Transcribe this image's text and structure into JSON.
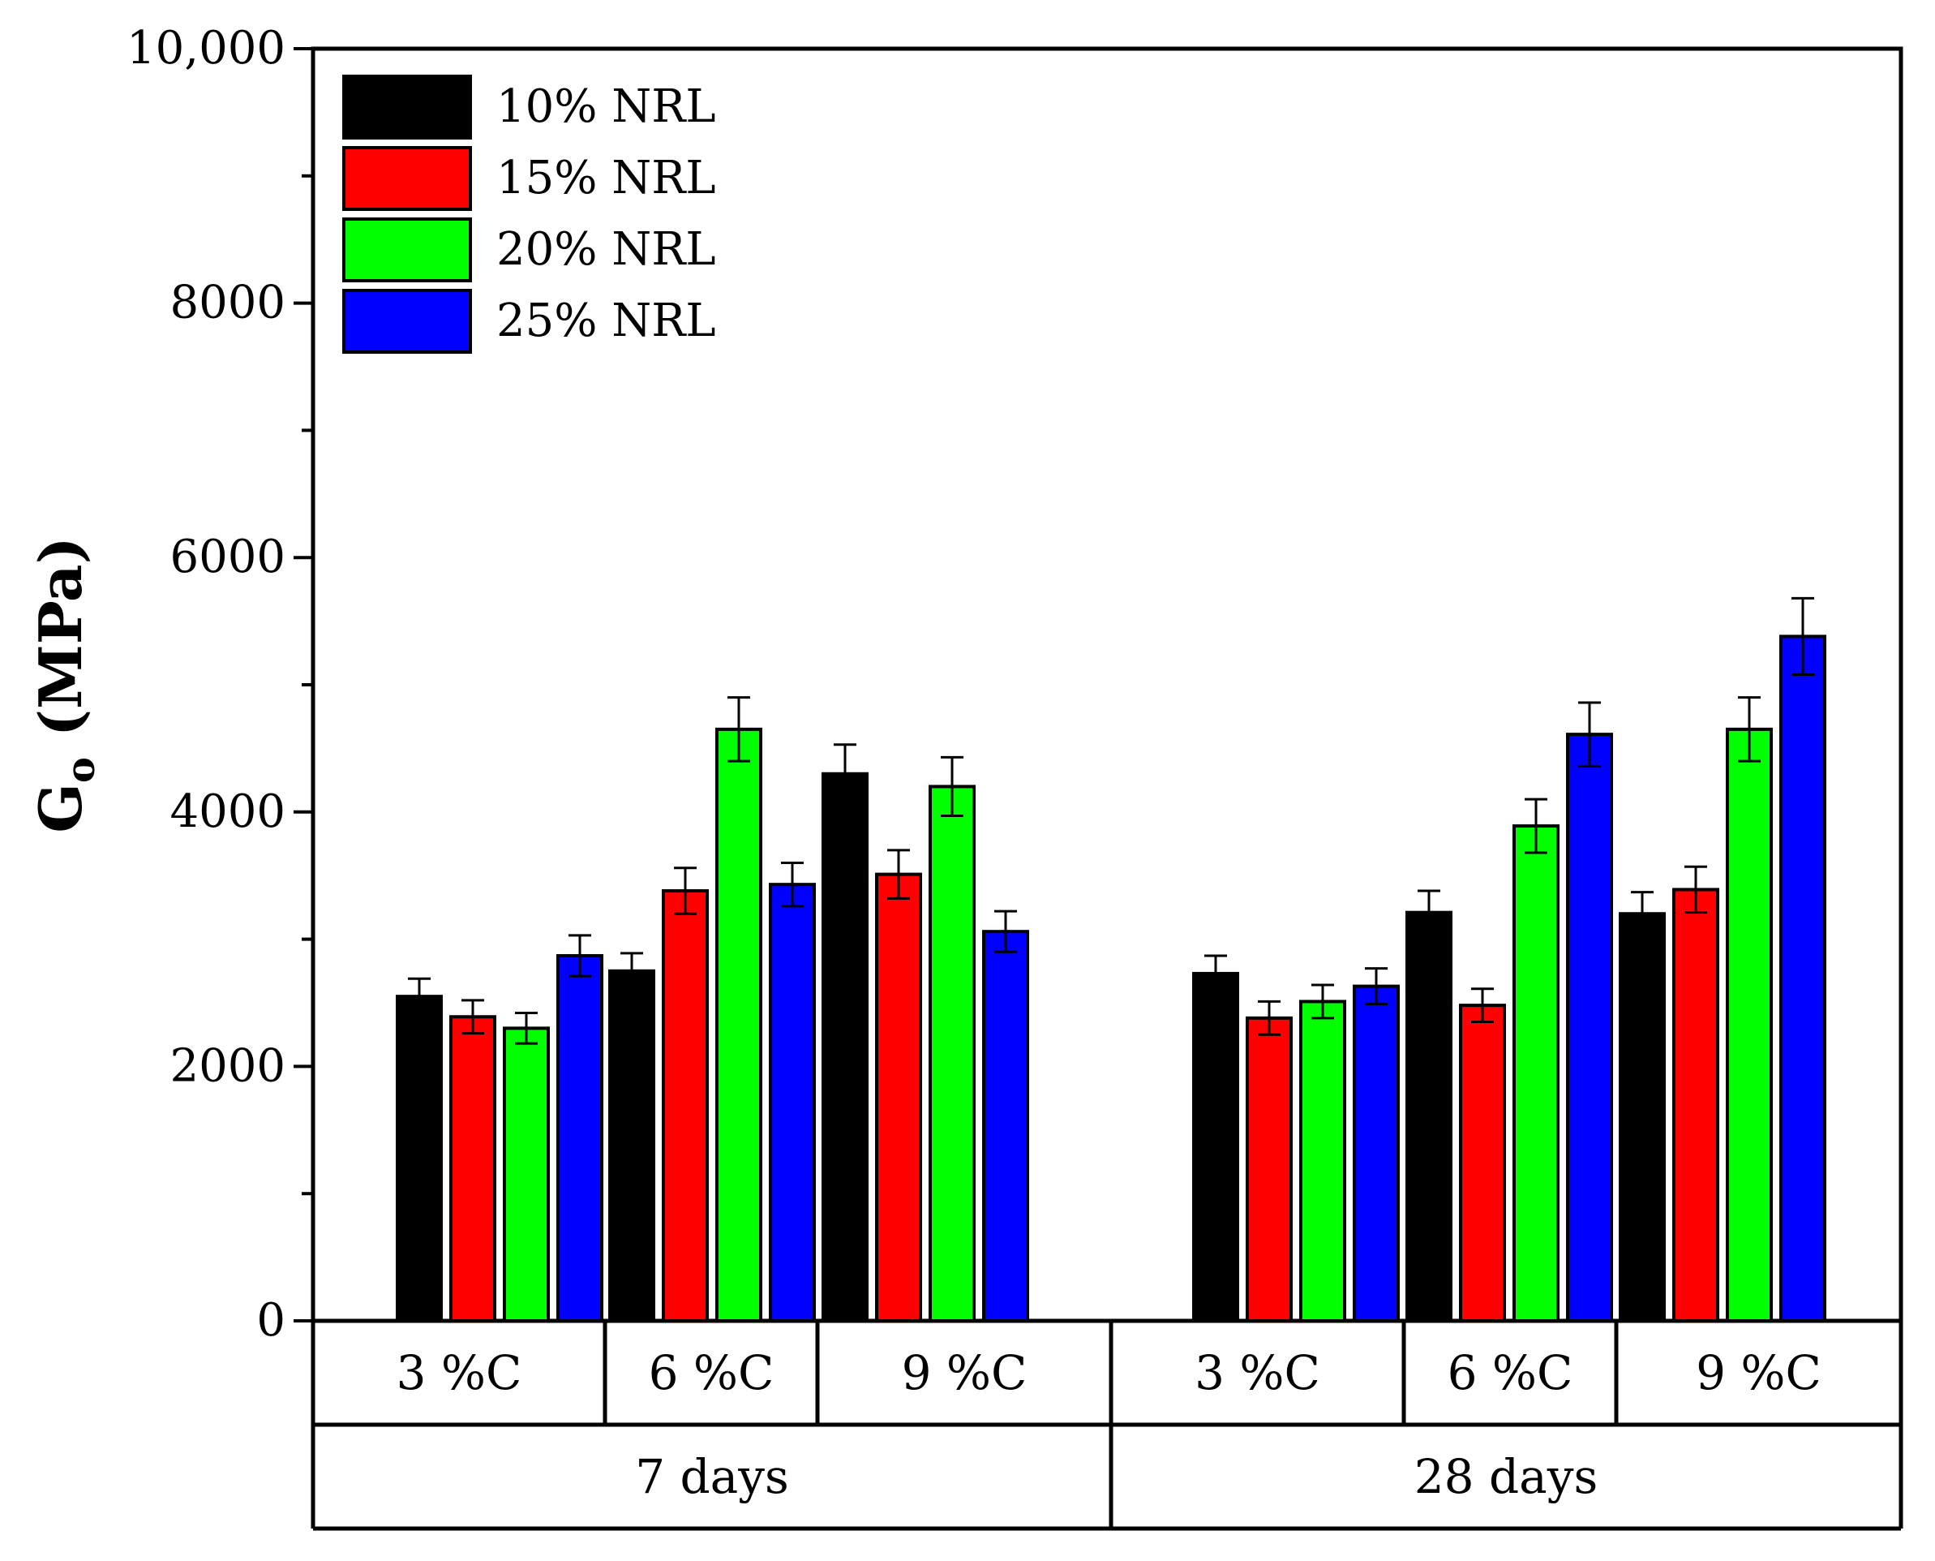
{
  "chart_data": {
    "type": "bar",
    "title": "",
    "ylabel_main": "G",
    "ylabel_sub": "o",
    "ylabel_rest": " (MPa)",
    "ylim": [
      0,
      10000
    ],
    "yticks": [
      {
        "value": 0,
        "label": "0"
      },
      {
        "value": 2000,
        "label": "2000"
      },
      {
        "value": 4000,
        "label": "4000"
      },
      {
        "value": 6000,
        "label": "6000"
      },
      {
        "value": 8000,
        "label": "8000"
      },
      {
        "value": 10000,
        "label": "10,000"
      }
    ],
    "minor_tick_step": 1000,
    "groups": [
      {
        "label": "7 days",
        "categories": [
          "3 %C",
          "6 %C",
          "9 %C"
        ]
      },
      {
        "label": "28 days",
        "categories": [
          "3 %C",
          "6 %C",
          "9 %C"
        ]
      }
    ],
    "series": [
      {
        "name": "10% NRL",
        "color": "#000000",
        "values": [
          2550,
          2750,
          4300,
          2730,
          3210,
          3200
        ],
        "errors": [
          140,
          140,
          230,
          140,
          170,
          170
        ]
      },
      {
        "name": "15% NRL",
        "color": "#ff0000",
        "values": [
          2390,
          3380,
          3510,
          2380,
          2480,
          3390
        ],
        "errors": [
          130,
          180,
          190,
          130,
          130,
          180
        ]
      },
      {
        "name": "20% NRL",
        "color": "#00ff00",
        "values": [
          2300,
          4650,
          4200,
          2510,
          3890,
          4650
        ],
        "errors": [
          120,
          250,
          230,
          130,
          210,
          250
        ]
      },
      {
        "name": "25% NRL",
        "color": "#0000ff",
        "values": [
          2870,
          3430,
          3060,
          2630,
          4610,
          5380
        ],
        "errors": [
          160,
          170,
          160,
          140,
          250,
          300
        ]
      }
    ],
    "legend": "top-left"
  }
}
